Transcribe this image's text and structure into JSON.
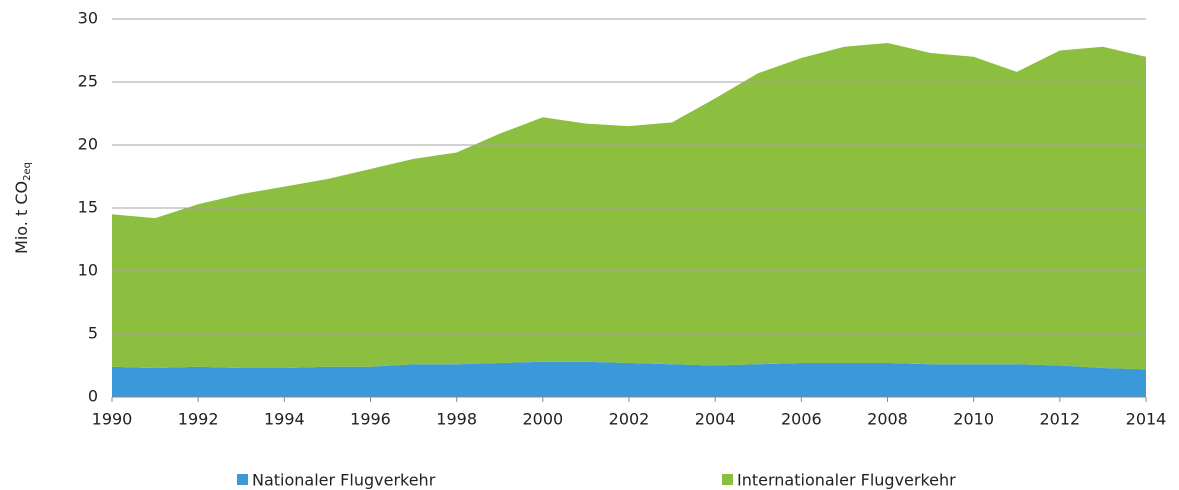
{
  "chart_data": {
    "type": "area",
    "stacked": true,
    "y_label": "Mio. t CO",
    "y_label_subscript": "2eq",
    "x": [
      1990,
      1991,
      1992,
      1993,
      1994,
      1995,
      1996,
      1997,
      1998,
      1999,
      2000,
      2001,
      2002,
      2003,
      2004,
      2005,
      2006,
      2007,
      2008,
      2009,
      2010,
      2011,
      2012,
      2013,
      2014
    ],
    "series": [
      {
        "name": "Nationaler Flugverkehr",
        "color": "#3a9ad9",
        "values": [
          2.4,
          2.3,
          2.4,
          2.3,
          2.3,
          2.4,
          2.4,
          2.6,
          2.6,
          2.7,
          2.8,
          2.8,
          2.7,
          2.6,
          2.5,
          2.6,
          2.7,
          2.7,
          2.7,
          2.6,
          2.6,
          2.6,
          2.5,
          2.3,
          2.2
        ]
      },
      {
        "name": "Internationaler Flugverkehr",
        "color": "#8cbf3f",
        "values": [
          12.1,
          11.9,
          12.9,
          13.8,
          14.4,
          14.9,
          15.7,
          16.3,
          16.8,
          18.2,
          19.4,
          18.9,
          18.8,
          19.2,
          21.2,
          23.1,
          24.2,
          25.1,
          25.4,
          24.7,
          24.4,
          23.2,
          25.0,
          25.5,
          24.8
        ]
      }
    ],
    "xlim": [
      1990,
      2014
    ],
    "xticks": [
      1990,
      1992,
      1994,
      1996,
      1998,
      2000,
      2002,
      2004,
      2006,
      2008,
      2010,
      2012,
      2014
    ],
    "ylim": [
      0,
      30
    ],
    "yticks": [
      0,
      5,
      10,
      15,
      20,
      25,
      30
    ],
    "grid": true,
    "legend": "bottom"
  }
}
